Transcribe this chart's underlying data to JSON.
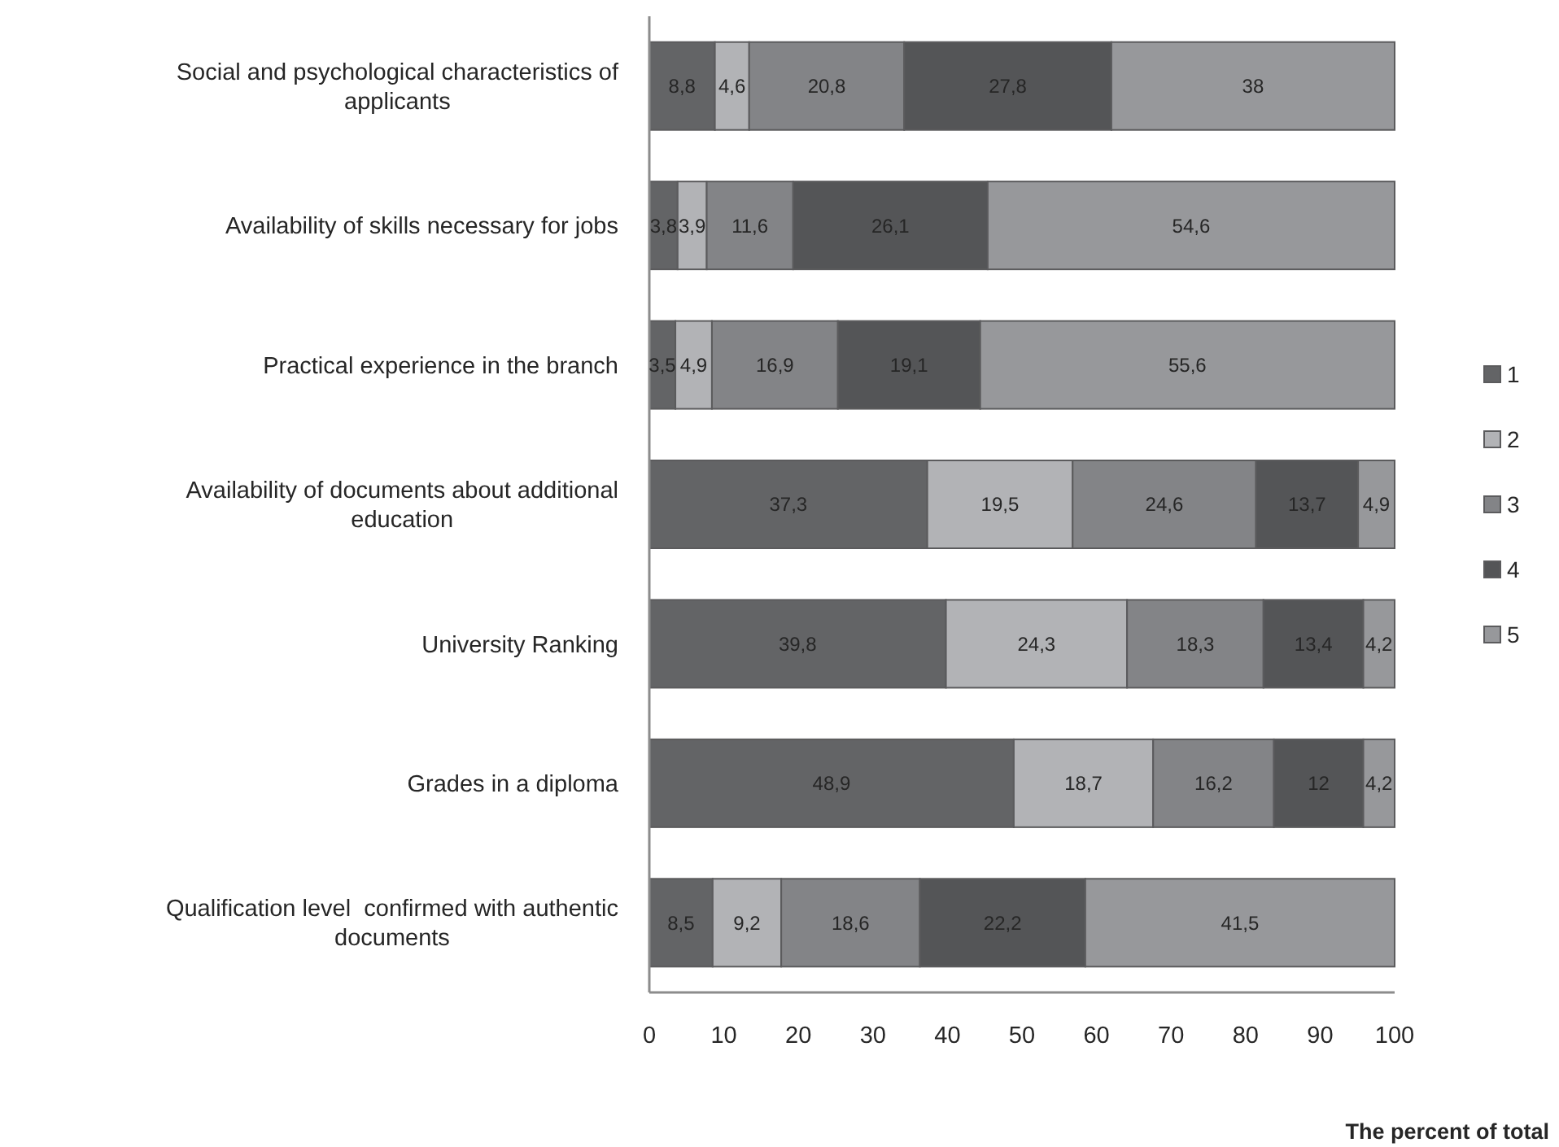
{
  "chart_data": {
    "type": "bar",
    "orientation": "horizontal",
    "stacked": true,
    "xlabel": "The percent of total",
    "categories": [
      "Social and psychological characteristics of applicants",
      "Availability of skills necessary for jobs",
      "Practical experience in the branch",
      "Availability of documents about additional education",
      "University Ranking",
      "Grades in a diploma",
      "Qualification level  confirmed with authentic documents"
    ],
    "series": [
      {
        "name": "1",
        "color": "#636466",
        "values": [
          8.8,
          3.8,
          3.5,
          37.3,
          39.8,
          48.9,
          8.5
        ],
        "value_labels": [
          "8,8",
          "3,8",
          "3,5",
          "37,3",
          "39,8",
          "48,9",
          "8,5"
        ]
      },
      {
        "name": "2",
        "color": "#b2b3b6",
        "values": [
          4.6,
          3.9,
          4.9,
          19.5,
          24.3,
          18.7,
          9.2
        ],
        "value_labels": [
          "4,6",
          "3,9",
          "4,9",
          "19,5",
          "24,3",
          "18,7",
          "9,2"
        ]
      },
      {
        "name": "3",
        "color": "#838487",
        "values": [
          20.8,
          11.6,
          16.9,
          24.6,
          18.3,
          16.2,
          18.6
        ],
        "value_labels": [
          "20,8",
          "11,6",
          "16,9",
          "24,6",
          "18,3",
          "16,2",
          "18,6"
        ]
      },
      {
        "name": "4",
        "color": "#545557",
        "values": [
          27.8,
          26.1,
          19.1,
          13.7,
          13.4,
          12,
          22.2
        ],
        "value_labels": [
          "27,8",
          "26,1",
          "19,1",
          "13,7",
          "13,4",
          "12",
          "22,2"
        ]
      },
      {
        "name": "5",
        "color": "#97989b",
        "values": [
          38,
          54.6,
          55.6,
          4.9,
          4.2,
          4.2,
          41.5
        ],
        "value_labels": [
          "38",
          "54,6",
          "55,6",
          "4,9",
          "4,2",
          "4,2",
          "41,5"
        ]
      }
    ],
    "xlim": [
      0,
      100
    ],
    "xticks": [
      0,
      10,
      20,
      30,
      40,
      50,
      60,
      70,
      80,
      90,
      100
    ],
    "grid": false,
    "legend": "right"
  }
}
